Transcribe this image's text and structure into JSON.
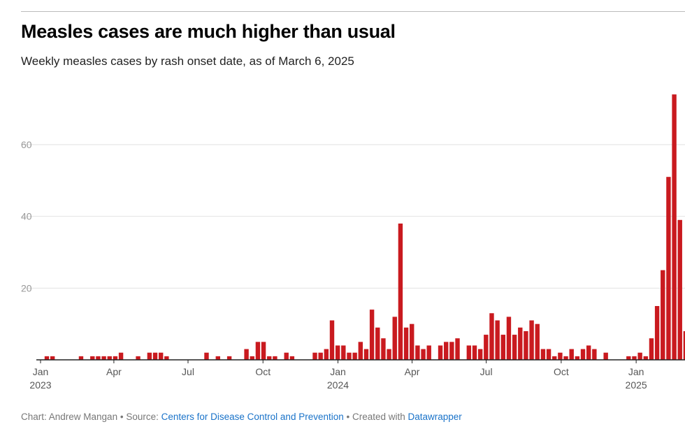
{
  "chart_data": {
    "type": "bar",
    "title": "Measles cases are much higher than usual",
    "subtitle": "Weekly measles cases by rash onset date, as of March 6, 2025",
    "xlabel": "",
    "ylabel": "",
    "ylim": [
      0,
      75
    ],
    "yticks": [
      20,
      40,
      60
    ],
    "grid": true,
    "bar_color": "#c91a1f",
    "xticks": [
      {
        "date": "2023-01-01",
        "label": "Jan",
        "year": "2023"
      },
      {
        "date": "2023-04-01",
        "label": "Apr",
        "year": ""
      },
      {
        "date": "2023-07-01",
        "label": "Jul",
        "year": ""
      },
      {
        "date": "2023-10-01",
        "label": "Oct",
        "year": ""
      },
      {
        "date": "2024-01-01",
        "label": "Jan",
        "year": "2024"
      },
      {
        "date": "2024-04-01",
        "label": "Apr",
        "year": ""
      },
      {
        "date": "2024-07-01",
        "label": "Jul",
        "year": ""
      },
      {
        "date": "2024-10-01",
        "label": "Oct",
        "year": ""
      },
      {
        "date": "2025-01-01",
        "label": "Jan",
        "year": "2025"
      }
    ],
    "points": [
      [
        "2023-01-01",
        1
      ],
      [
        "2023-01-08",
        1
      ],
      [
        "2023-02-12",
        1
      ],
      [
        "2023-02-26",
        1
      ],
      [
        "2023-03-05",
        1
      ],
      [
        "2023-03-12",
        1
      ],
      [
        "2023-03-19",
        1
      ],
      [
        "2023-03-26",
        1
      ],
      [
        "2023-04-02",
        2
      ],
      [
        "2023-04-23",
        1
      ],
      [
        "2023-05-07",
        2
      ],
      [
        "2023-05-14",
        2
      ],
      [
        "2023-05-21",
        2
      ],
      [
        "2023-05-28",
        1
      ],
      [
        "2023-07-16",
        2
      ],
      [
        "2023-07-30",
        1
      ],
      [
        "2023-08-13",
        1
      ],
      [
        "2023-09-03",
        3
      ],
      [
        "2023-09-10",
        1
      ],
      [
        "2023-09-17",
        5
      ],
      [
        "2023-09-24",
        5
      ],
      [
        "2023-10-01",
        1
      ],
      [
        "2023-10-08",
        1
      ],
      [
        "2023-10-22",
        2
      ],
      [
        "2023-10-29",
        1
      ],
      [
        "2023-11-26",
        2
      ],
      [
        "2023-12-03",
        2
      ],
      [
        "2023-12-10",
        3
      ],
      [
        "2023-12-17",
        11
      ],
      [
        "2023-12-24",
        4
      ],
      [
        "2023-12-31",
        4
      ],
      [
        "2024-01-07",
        2
      ],
      [
        "2024-01-14",
        2
      ],
      [
        "2024-01-21",
        5
      ],
      [
        "2024-01-28",
        3
      ],
      [
        "2024-02-04",
        14
      ],
      [
        "2024-02-11",
        9
      ],
      [
        "2024-02-18",
        6
      ],
      [
        "2024-02-25",
        3
      ],
      [
        "2024-03-03",
        12
      ],
      [
        "2024-03-10",
        38
      ],
      [
        "2024-03-17",
        9
      ],
      [
        "2024-03-24",
        10
      ],
      [
        "2024-03-31",
        4
      ],
      [
        "2024-04-07",
        3
      ],
      [
        "2024-04-14",
        4
      ],
      [
        "2024-04-28",
        4
      ],
      [
        "2024-05-05",
        5
      ],
      [
        "2024-05-12",
        5
      ],
      [
        "2024-05-19",
        6
      ],
      [
        "2024-06-02",
        4
      ],
      [
        "2024-06-09",
        4
      ],
      [
        "2024-06-16",
        3
      ],
      [
        "2024-06-23",
        7
      ],
      [
        "2024-06-30",
        13
      ],
      [
        "2024-07-07",
        11
      ],
      [
        "2024-07-14",
        7
      ],
      [
        "2024-07-21",
        12
      ],
      [
        "2024-07-28",
        7
      ],
      [
        "2024-08-04",
        9
      ],
      [
        "2024-08-11",
        8
      ],
      [
        "2024-08-18",
        11
      ],
      [
        "2024-08-25",
        10
      ],
      [
        "2024-09-01",
        3
      ],
      [
        "2024-09-08",
        3
      ],
      [
        "2024-09-15",
        1
      ],
      [
        "2024-09-22",
        2
      ],
      [
        "2024-09-29",
        1
      ],
      [
        "2024-10-06",
        3
      ],
      [
        "2024-10-13",
        1
      ],
      [
        "2024-10-20",
        3
      ],
      [
        "2024-10-27",
        4
      ],
      [
        "2024-11-03",
        3
      ],
      [
        "2024-11-17",
        2
      ],
      [
        "2024-12-15",
        1
      ],
      [
        "2024-12-22",
        1
      ],
      [
        "2024-12-29",
        2
      ],
      [
        "2025-01-05",
        1
      ],
      [
        "2025-01-12",
        6
      ],
      [
        "2025-01-19",
        15
      ],
      [
        "2025-01-26",
        25
      ],
      [
        "2025-02-02",
        51
      ],
      [
        "2025-02-09",
        74
      ],
      [
        "2025-02-16",
        39
      ],
      [
        "2025-02-23",
        8
      ]
    ]
  },
  "footer": {
    "chart_by": "Chart: Andrew Mangan",
    "sep1": " • Source: ",
    "source_link": "Centers for Disease Control and Prevention",
    "sep2": " • Created with ",
    "tool_link": "Datawrapper"
  }
}
